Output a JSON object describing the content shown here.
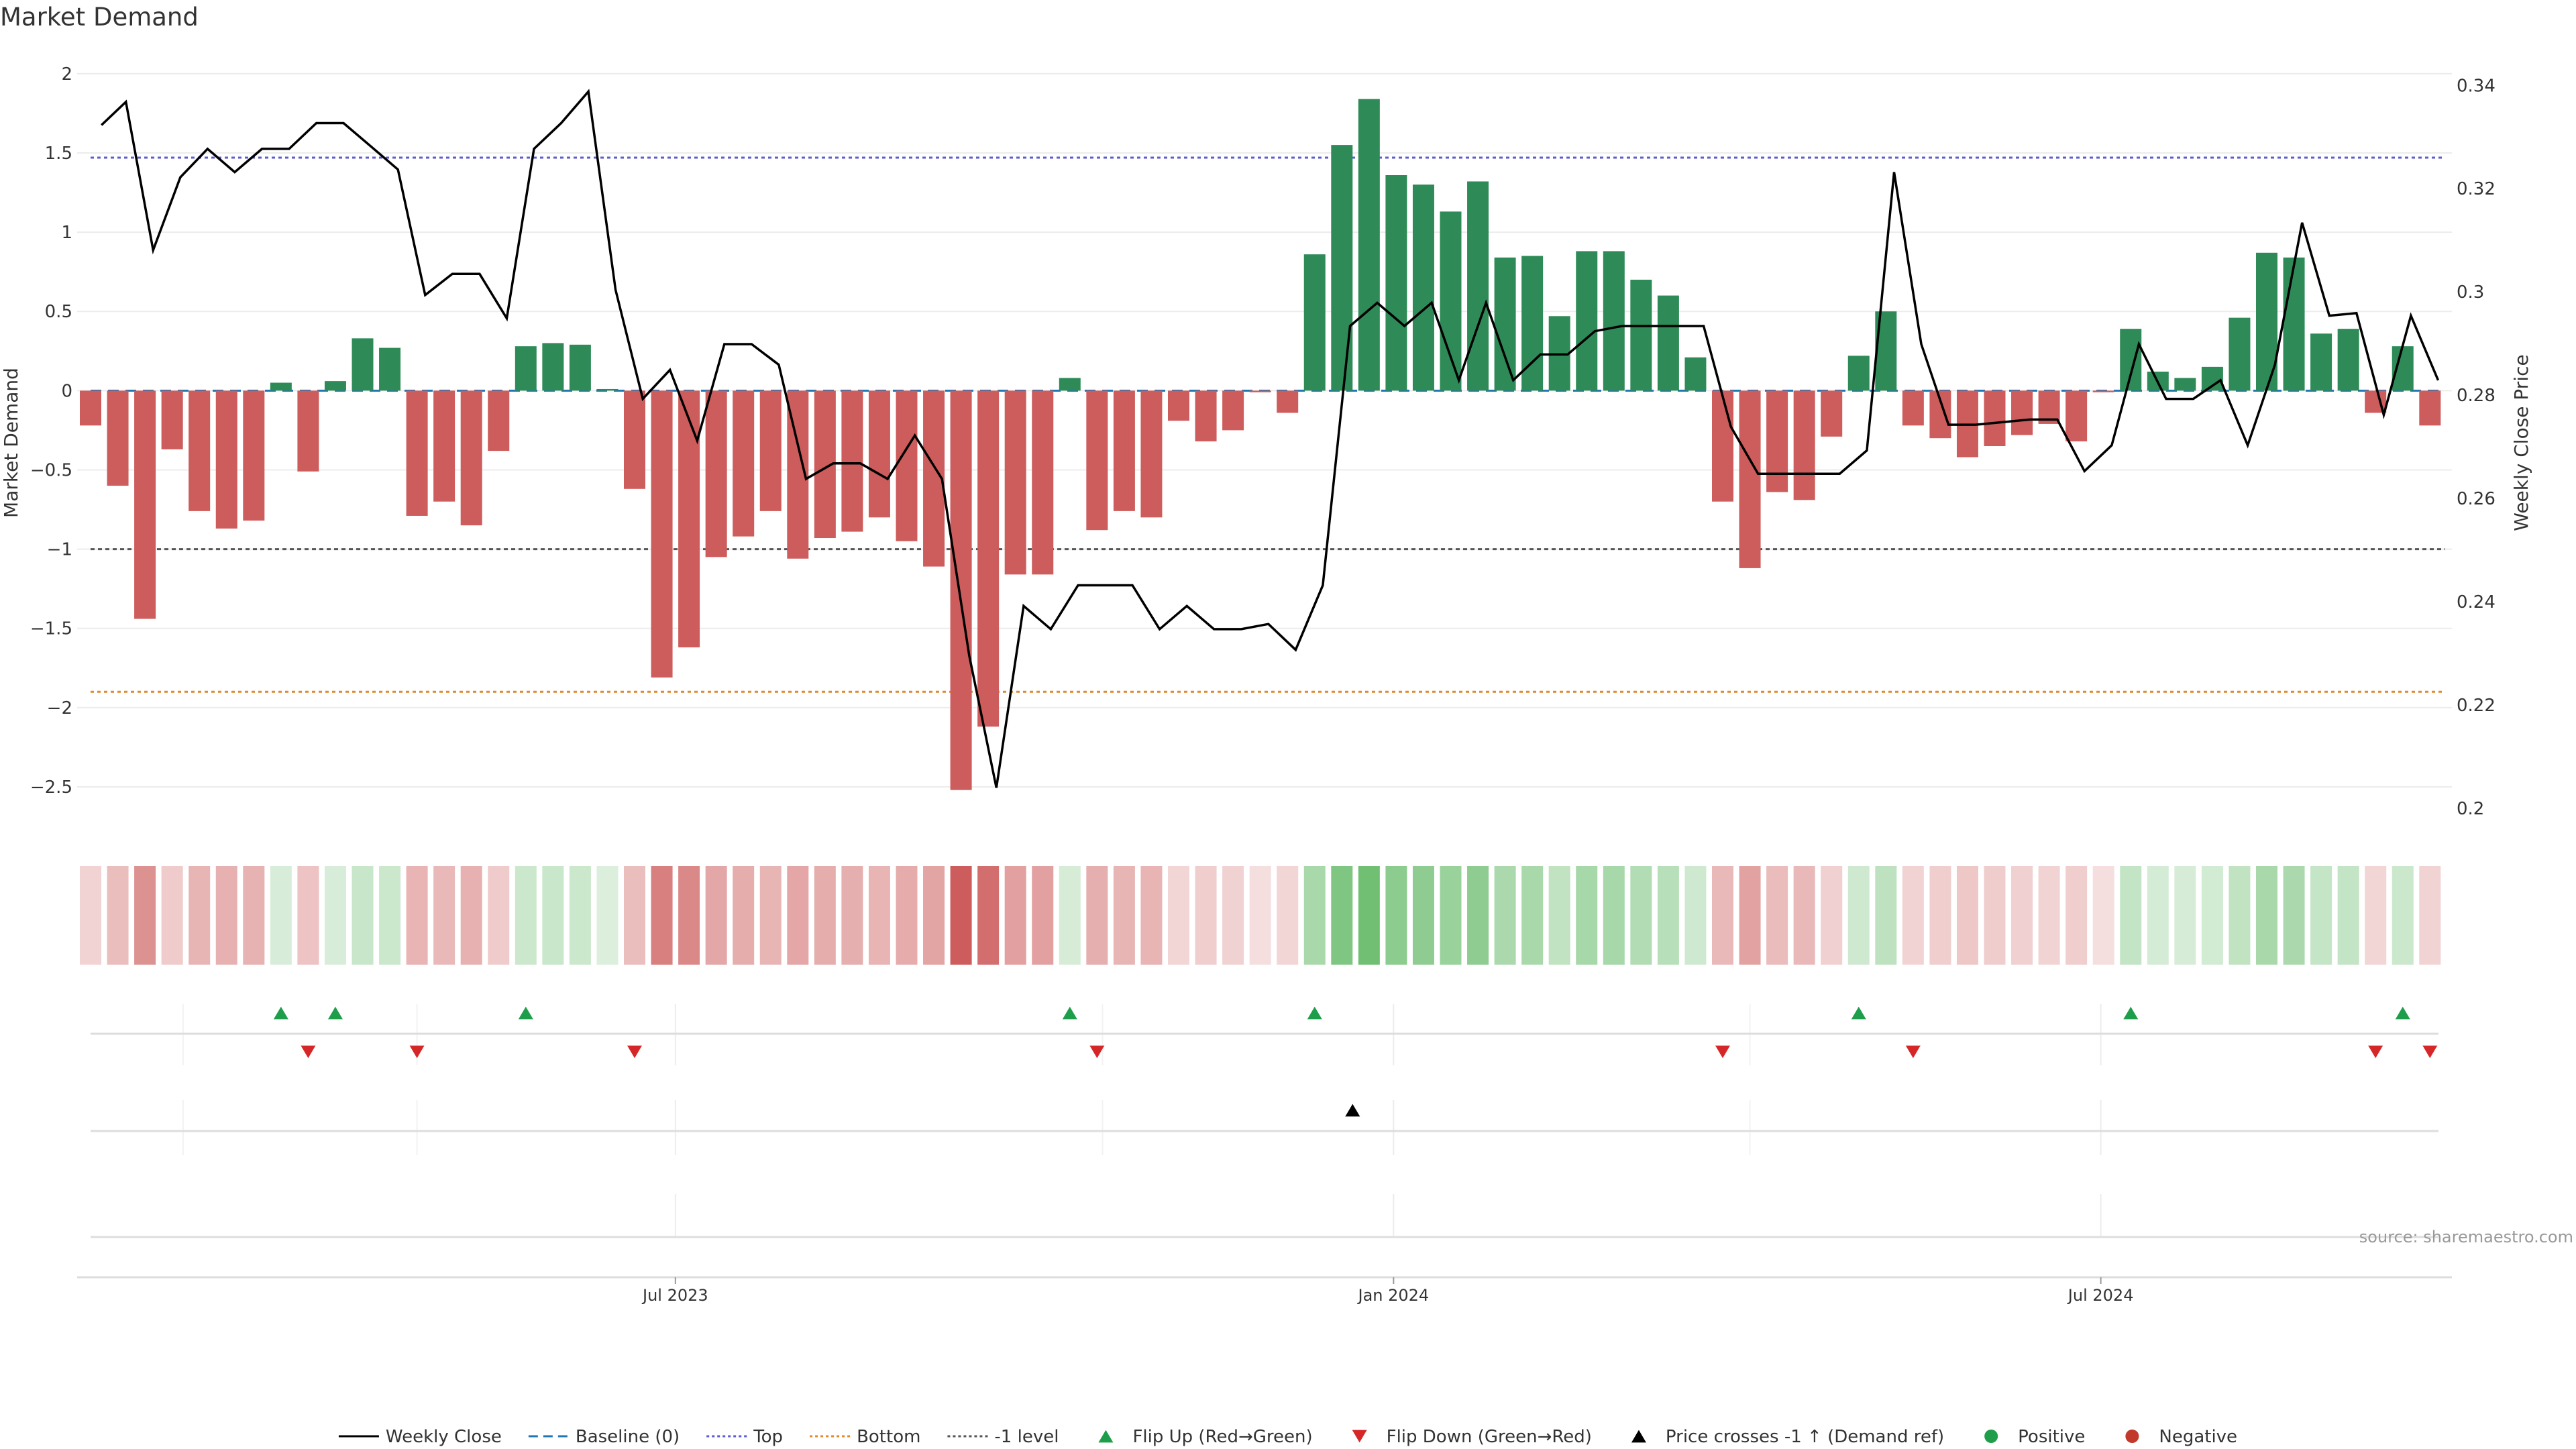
{
  "chart_data": {
    "type": "bar",
    "title": "Market Demand",
    "ylabel": "Market Demand",
    "y2label": "Weekly Close Price",
    "ylim": [
      -2.75,
      2.05
    ],
    "y2lim": [
      0.1965,
      0.3438
    ],
    "yticks": [
      2,
      1.5,
      1,
      0.5,
      0,
      -0.5,
      -1,
      -1.5,
      -2,
      -2.5
    ],
    "ytick_labels": [
      "2",
      "1.5",
      "1",
      "0.5",
      "0",
      "−0.5",
      "−1",
      "−1.5",
      "−2",
      "−2.5"
    ],
    "y2ticks": [
      0.34,
      0.32,
      0.3,
      0.28,
      0.26,
      0.24,
      0.22,
      0.2
    ],
    "y2tick_labels": [
      "0.34",
      "0.32",
      "0.3",
      "0.28",
      "0.26",
      "0.24",
      "0.22",
      "0.2"
    ],
    "xticks": [
      {
        "index": 21.5,
        "label": "Jul 2023"
      },
      {
        "index": 47.9,
        "label": "Jan 2024"
      },
      {
        "index": 73.9,
        "label": "Jul 2024"
      }
    ],
    "reference_lines": {
      "top": 1.47,
      "bottom": -1.9,
      "minus_one": -1,
      "baseline": 0
    },
    "demand": [
      -0.22,
      -0.6,
      -1.44,
      -0.37,
      -0.76,
      -0.87,
      -0.82,
      0.05,
      -0.51,
      0.06,
      0.33,
      0.27,
      -0.79,
      -0.7,
      -0.85,
      -0.38,
      0.28,
      0.3,
      0.29,
      0.01,
      -0.62,
      -1.81,
      -1.62,
      -1.05,
      -0.92,
      -0.76,
      -1.06,
      -0.93,
      -0.89,
      -0.8,
      -0.95,
      -1.11,
      -2.52,
      -2.12,
      -1.16,
      -1.16,
      0.08,
      -0.88,
      -0.76,
      -0.8,
      -0.19,
      -0.32,
      -0.25,
      -0.01,
      -0.14,
      0.86,
      1.55,
      1.84,
      1.36,
      1.3,
      1.13,
      1.32,
      0.84,
      0.85,
      0.47,
      0.88,
      0.88,
      0.7,
      0.6,
      0.21,
      -0.7,
      -1.12,
      -0.64,
      -0.69,
      -0.29,
      0.22,
      0.5,
      -0.22,
      -0.3,
      -0.42,
      -0.35,
      -0.28,
      -0.21,
      -0.32,
      -0.01,
      0.39,
      0.12,
      0.08,
      0.15,
      0.46,
      0.87,
      0.84,
      0.36,
      0.39,
      -0.14,
      0.28,
      -0.22
    ],
    "close_x": [
      0.4,
      1.3,
      2.3,
      3.3,
      4.3,
      5.3,
      6.3,
      7.3,
      8.3,
      9.3,
      10.3,
      11.3,
      12.3,
      13.3,
      14.3,
      15.3,
      16.3,
      17.3,
      18.3,
      19.3,
      20.3,
      21.3,
      22.3,
      23.3,
      24.3,
      25.3,
      26.3,
      27.3,
      28.3,
      29.3,
      30.3,
      31.3,
      32.3,
      33.3,
      34.3,
      35.3,
      36.3,
      37.3,
      38.3,
      39.3,
      40.3,
      41.3,
      42.3,
      43.3,
      44.3,
      45.3,
      46.3,
      47.3,
      48.3,
      49.3,
      50.3,
      51.3,
      52.3,
      53.3,
      54.3,
      55.3,
      56.3,
      57.3,
      58.3,
      59.3,
      60.3,
      61.3,
      62.3,
      63.3,
      64.3,
      65.3,
      66.3,
      67.3,
      68.3,
      69.3,
      70.3,
      71.3,
      72.3,
      73.3,
      74.3,
      75.3,
      76.3,
      77.3,
      78.3,
      79.3,
      80.3,
      81.3,
      82.3,
      83.3,
      84.3,
      85.3,
      86.3
    ],
    "close": [
      0.3323,
      0.3368,
      0.3081,
      0.3222,
      0.3277,
      0.3232,
      0.3277,
      0.3277,
      0.3327,
      0.3327,
      0.3282,
      0.3237,
      0.2994,
      0.3035,
      0.3035,
      0.2949,
      0.3277,
      0.3327,
      0.3388,
      0.3004,
      0.2793,
      0.2849,
      0.2712,
      0.2899,
      0.2899,
      0.2859,
      0.2638,
      0.2668,
      0.2668,
      0.2638,
      0.2722,
      0.2638,
      0.2296,
      0.204,
      0.2392,
      0.2347,
      0.2432,
      0.2432,
      0.2432,
      0.2347,
      0.2392,
      0.2347,
      0.2347,
      0.2357,
      0.2307,
      0.2432,
      0.2934,
      0.2979,
      0.2934,
      0.2979,
      0.2829,
      0.2979,
      0.2829,
      0.2879,
      0.2879,
      0.2924,
      0.2934,
      0.2934,
      0.2934,
      0.2934,
      0.2739,
      0.2648,
      0.2648,
      0.2648,
      0.2648,
      0.2693,
      0.3232,
      0.2899,
      0.2743,
      0.2743,
      0.2748,
      0.2753,
      0.2753,
      0.2653,
      0.2703,
      0.2899,
      0.2793,
      0.2793,
      0.2829,
      0.2703,
      0.2859,
      0.3134,
      0.2954,
      0.2959,
      0.2762,
      0.2954,
      0.2829
    ],
    "flip_up_indices": [
      7,
      9,
      16,
      36,
      45,
      65,
      75,
      85
    ],
    "flip_down_indices": [
      8,
      12,
      20,
      37,
      60,
      67,
      84,
      86
    ],
    "price_cross_indices": [
      46
    ],
    "legend": [
      {
        "label": "Weekly Close",
        "kind": "line-solid",
        "color": "#000000"
      },
      {
        "label": "Baseline (0)",
        "kind": "line-dash",
        "color": "#1f77b4"
      },
      {
        "label": "Top",
        "kind": "line-dot",
        "color": "#5b5bd6"
      },
      {
        "label": "Bottom",
        "kind": "line-dot",
        "color": "#e08a2c"
      },
      {
        "label": "-1 level",
        "kind": "line-dot",
        "color": "#555555"
      },
      {
        "label": "Flip Up (Red→Green)",
        "kind": "tri-up",
        "color": "#1e9e4a"
      },
      {
        "label": "Flip Down (Green→Red)",
        "kind": "tri-down",
        "color": "#d62728"
      },
      {
        "label": "Price crosses -1 ↑ (Demand ref)",
        "kind": "tri-up",
        "color": "#000000"
      },
      {
        "label": "Positive",
        "kind": "dot",
        "color": "#1e9e4a"
      },
      {
        "label": "Negative",
        "kind": "dot",
        "color": "#c0392b"
      }
    ],
    "legend_position": "bottom-center"
  },
  "colors": {
    "positive": "#2e8b57",
    "negative": "#cd5c5c",
    "close_line": "#000000",
    "top_line": "#5b5bd6",
    "bottom_line": "#e08a2c",
    "minus_one_line": "#555555",
    "baseline_line": "#1f77b4",
    "flip_up": "#1e9e4a",
    "flip_down": "#d62728",
    "cross": "#000000",
    "grid": "#ececec"
  },
  "source_note": "source: sharemaestro.com"
}
